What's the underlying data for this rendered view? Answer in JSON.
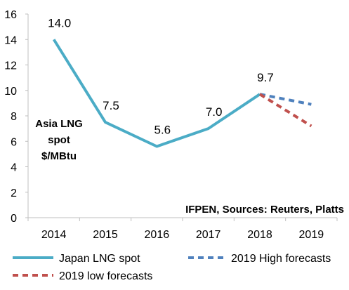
{
  "chart_data": {
    "type": "line",
    "categories": [
      "2014",
      "2015",
      "2016",
      "2017",
      "2018",
      "2019"
    ],
    "ylim": [
      0,
      16
    ],
    "yticks": [
      0,
      2,
      4,
      6,
      8,
      10,
      12,
      14,
      16
    ],
    "grid": false,
    "legend_position": "bottom",
    "series": [
      {
        "name": "Japan LNG spot",
        "color": "#4bacc6",
        "style": "solid",
        "x": [
          "2014",
          "2015",
          "2016",
          "2017",
          "2018"
        ],
        "values": [
          14.0,
          7.5,
          5.6,
          7.0,
          9.7
        ],
        "labels": [
          "14.0",
          "7.5",
          "5.6",
          "7.0",
          "9.7"
        ]
      },
      {
        "name": "2019 High forecasts",
        "color": "#4f81bd",
        "style": "dashed",
        "x": [
          "2018",
          "2019"
        ],
        "values": [
          9.7,
          8.9
        ]
      },
      {
        "name": "2019 low forecasts",
        "color": "#c0504d",
        "style": "dashed",
        "x": [
          "2018",
          "2019"
        ],
        "values": [
          9.7,
          7.2
        ]
      }
    ],
    "annotations": {
      "ylabel_lines": [
        "Asia LNG",
        "spot",
        "$/MBtu"
      ],
      "source": "IFPEN, Sources: Reuters, Platts"
    }
  }
}
